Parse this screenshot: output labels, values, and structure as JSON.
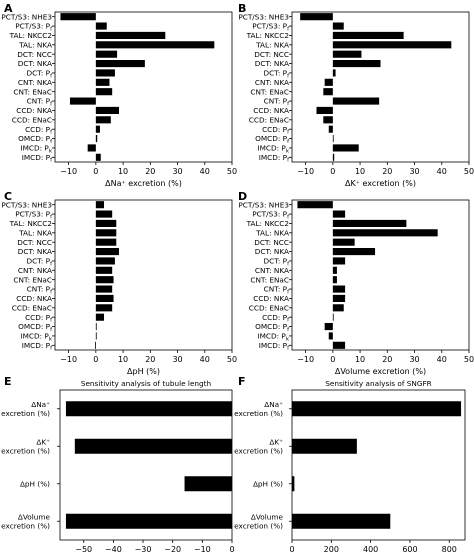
{
  "chart_data": [
    {
      "id": "A",
      "panel_label": "A",
      "type": "bar",
      "orientation": "horizontal",
      "title": "",
      "xlabel": "ΔNa⁺ excretion (%)",
      "xlim": [
        -15,
        50
      ],
      "xticks": [
        -10,
        0,
        10,
        20,
        30,
        40,
        50
      ],
      "categories": [
        "PCT/S3: NHE3",
        "PCT/S3: Pf",
        "TAL: NKCC2",
        "TAL: NKA",
        "DCT: NCC",
        "DCT: NKA",
        "DCT: Pf",
        "CNT: NKA",
        "CNT: ENaC",
        "CNT: Pf",
        "CCD: NKA",
        "CCD: ENaC",
        "CCD: Pf",
        "OMCD: Pf",
        "IMCD: Pk",
        "IMCD: Pf"
      ],
      "values": [
        -13,
        4,
        25.5,
        43.5,
        7.8,
        18,
        7,
        5,
        6,
        -9.5,
        8.5,
        5.5,
        1.5,
        0.5,
        -3,
        1.8
      ]
    },
    {
      "id": "B",
      "panel_label": "B",
      "type": "bar",
      "orientation": "horizontal",
      "title": "",
      "xlabel": "ΔK⁺ excretion (%)",
      "xlim": [
        -15,
        50
      ],
      "xticks": [
        -10,
        0,
        10,
        20,
        30,
        40,
        50
      ],
      "categories": [
        "PCT/S3: NHE3",
        "PCT/S3: Pf",
        "TAL: NKCC2",
        "TAL: NKA",
        "DCT: NCC",
        "DCT: NKA",
        "DCT: Pf",
        "CNT: NKA",
        "CNT: ENaC",
        "CNT: Pf",
        "CCD: NKA",
        "CCD: ENaC",
        "CCD: Pf",
        "OMCD: Pf",
        "IMCD: Pk",
        "IMCD: Pf"
      ],
      "values": [
        -12,
        4,
        26,
        43.5,
        10.5,
        17.5,
        1,
        -3,
        -3.5,
        17,
        -6,
        -3.5,
        -1.5,
        0.3,
        9.5,
        0.5
      ]
    },
    {
      "id": "C",
      "panel_label": "C",
      "type": "bar",
      "orientation": "horizontal",
      "title": "",
      "xlabel": "ΔpH (%)",
      "xlim": [
        -15,
        50
      ],
      "xticks": [
        -10,
        0,
        10,
        20,
        30,
        40,
        50
      ],
      "categories": [
        "PCT/S3: NHE3",
        "PCT/S3: Pf",
        "TAL: NKCC2",
        "TAL: NKA",
        "DCT: NCC",
        "DCT: NKA",
        "DCT: Pf",
        "CNT: NKA",
        "CNT: ENaC",
        "CNT: Pf",
        "CCD: NKA",
        "CCD: ENaC",
        "CCD: Pf",
        "OMCD: Pf",
        "IMCD: Pk",
        "IMCD: Pf"
      ],
      "values": [
        3,
        6,
        7.5,
        7.5,
        7.5,
        8.5,
        7,
        6,
        6.5,
        6,
        6.5,
        6,
        3,
        0.3,
        0.3,
        -0.3
      ]
    },
    {
      "id": "D",
      "panel_label": "D",
      "type": "bar",
      "orientation": "horizontal",
      "title": "",
      "xlabel": "ΔVolume excretion (%)",
      "xlim": [
        -15,
        50
      ],
      "xticks": [
        -10,
        0,
        10,
        20,
        30,
        40,
        50
      ],
      "categories": [
        "PCT/S3: NHE3",
        "PCT/S3: Pf",
        "TAL: NKCC2",
        "TAL: NKA",
        "DCT: NCC",
        "DCT: NKA",
        "DCT: Pf",
        "CNT: NKA",
        "CNT: ENaC",
        "CNT: Pf",
        "CCD: NKA",
        "CCD: ENaC",
        "CCD: Pf",
        "OMCD: Pf",
        "IMCD: Pk",
        "IMCD: Pf"
      ],
      "values": [
        -13,
        4.5,
        27,
        38.5,
        8,
        15.5,
        4.5,
        1.5,
        1.5,
        4.5,
        4.5,
        4,
        0.3,
        -3,
        -1.5,
        4.5
      ]
    },
    {
      "id": "E",
      "panel_label": "E",
      "type": "bar",
      "orientation": "horizontal",
      "title": "Sensitivity analysis of tubule length",
      "xlabel": "",
      "xlim": [
        -58,
        0
      ],
      "xticks": [
        -50,
        -40,
        -30,
        -20,
        -10,
        0
      ],
      "categories": [
        "ΔNa⁺ excretion (%)",
        "ΔK⁺ excretion (%)",
        "ΔpH (%)",
        "ΔVolume excretion (%)"
      ],
      "values": [
        -56,
        -53,
        -16,
        -56
      ]
    },
    {
      "id": "F",
      "panel_label": "F",
      "type": "bar",
      "orientation": "horizontal",
      "title": "Sensitivity analysis of SNGFR",
      "xlabel": "",
      "xlim": [
        0,
        880
      ],
      "xticks": [
        0,
        200,
        400,
        600,
        800
      ],
      "categories": [
        "ΔNa⁺ excretion (%)",
        "ΔK⁺ excretion (%)",
        "ΔpH (%)",
        "ΔVolume excretion (%)"
      ],
      "values": [
        860,
        330,
        12,
        500
      ]
    }
  ]
}
